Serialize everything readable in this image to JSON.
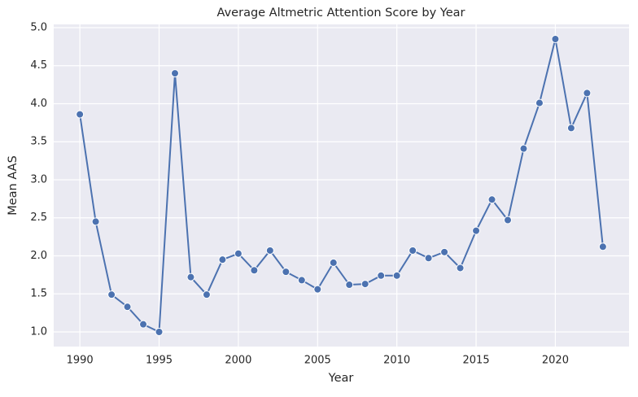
{
  "chart_data": {
    "type": "line",
    "title": "Average Altmetric Attention Score by Year",
    "x_label": "Year",
    "y_label": "Mean AAS",
    "x": [
      1990,
      1991,
      1992,
      1993,
      1994,
      1995,
      1996,
      1997,
      1998,
      1999,
      2000,
      2001,
      2002,
      2003,
      2004,
      2005,
      2006,
      2007,
      2008,
      2009,
      2010,
      2011,
      2012,
      2013,
      2014,
      2015,
      2016,
      2017,
      2018,
      2019,
      2020,
      2021,
      2022,
      2023
    ],
    "values": [
      3.86,
      2.45,
      1.49,
      1.33,
      1.1,
      1.0,
      4.4,
      1.72,
      1.49,
      1.95,
      2.03,
      1.81,
      2.07,
      1.79,
      1.68,
      1.56,
      1.91,
      1.62,
      1.63,
      1.74,
      1.74,
      2.07,
      1.97,
      2.05,
      1.84,
      2.33,
      2.74,
      2.47,
      3.41,
      4.01,
      4.85,
      3.68,
      4.14,
      2.12
    ],
    "color": "#4c72b0",
    "xlim": [
      1988.35,
      2024.65
    ],
    "xticks": [
      1990,
      1995,
      2000,
      2005,
      2010,
      2015,
      2020
    ],
    "ylim": [
      0.8075,
      5.0425
    ],
    "yticks": [
      {
        "value": 1,
        "label": "1.0"
      },
      1.5,
      {
        "value": 2,
        "label": "2.0"
      },
      2.5,
      {
        "value": 3,
        "label": "3.0"
      },
      3.5,
      {
        "value": 4,
        "label": "4.0"
      },
      4.5,
      {
        "value": 5,
        "label": "5.0"
      }
    ],
    "grid": true
  }
}
